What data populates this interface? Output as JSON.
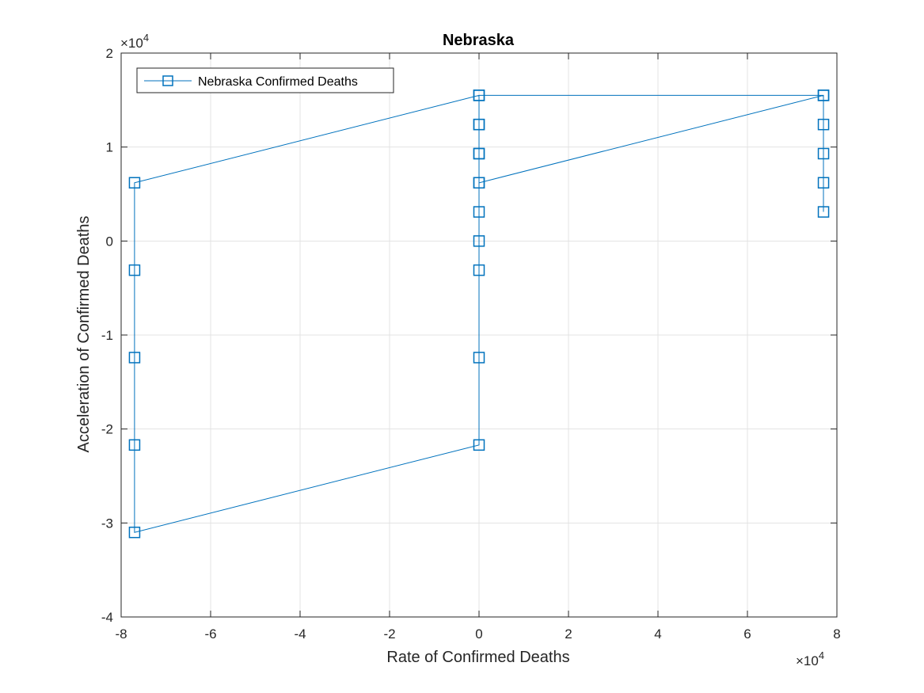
{
  "chart_data": {
    "type": "line",
    "title": "Nebraska",
    "xlabel": "Rate of Confirmed Deaths",
    "ylabel": "Acceleration of Confirmed Deaths",
    "x_exponent_label": "×10",
    "x_exponent_power": "4",
    "y_exponent_label": "×10",
    "y_exponent_power": "4",
    "xlim": [
      -8,
      8
    ],
    "ylim": [
      -4,
      2
    ],
    "x_ticks": [
      -8,
      -6,
      -4,
      -2,
      0,
      2,
      4,
      6,
      8
    ],
    "x_tick_labels": [
      "-8",
      "-6",
      "-4",
      "-2",
      "0",
      "2",
      "4",
      "6",
      "8"
    ],
    "y_ticks": [
      -4,
      -3,
      -2,
      -1,
      0,
      1,
      2
    ],
    "y_tick_labels": [
      "-4",
      "-3",
      "-2",
      "-1",
      "0",
      "1",
      "2"
    ],
    "grid": true,
    "legend_position": "top-left",
    "series": [
      {
        "name": "Nebraska Confirmed Deaths",
        "color": "#0072BD",
        "marker": "square",
        "x": [
          7.7,
          7.7,
          7.7,
          7.7,
          7.7,
          0,
          0,
          0,
          0,
          0,
          0,
          0,
          0,
          0,
          -7.7,
          -7.7,
          -7.7,
          -7.7,
          -7.7,
          0,
          0,
          0,
          0,
          7.7
        ],
        "y": [
          0.31,
          0.62,
          0.93,
          1.24,
          1.55,
          1.55,
          1.24,
          0.93,
          0.62,
          0.31,
          0,
          -0.31,
          -1.24,
          -2.17,
          -3.1,
          -2.17,
          -1.24,
          -0.31,
          0.62,
          1.55,
          1.24,
          0.93,
          0.62,
          1.55
        ]
      }
    ]
  }
}
